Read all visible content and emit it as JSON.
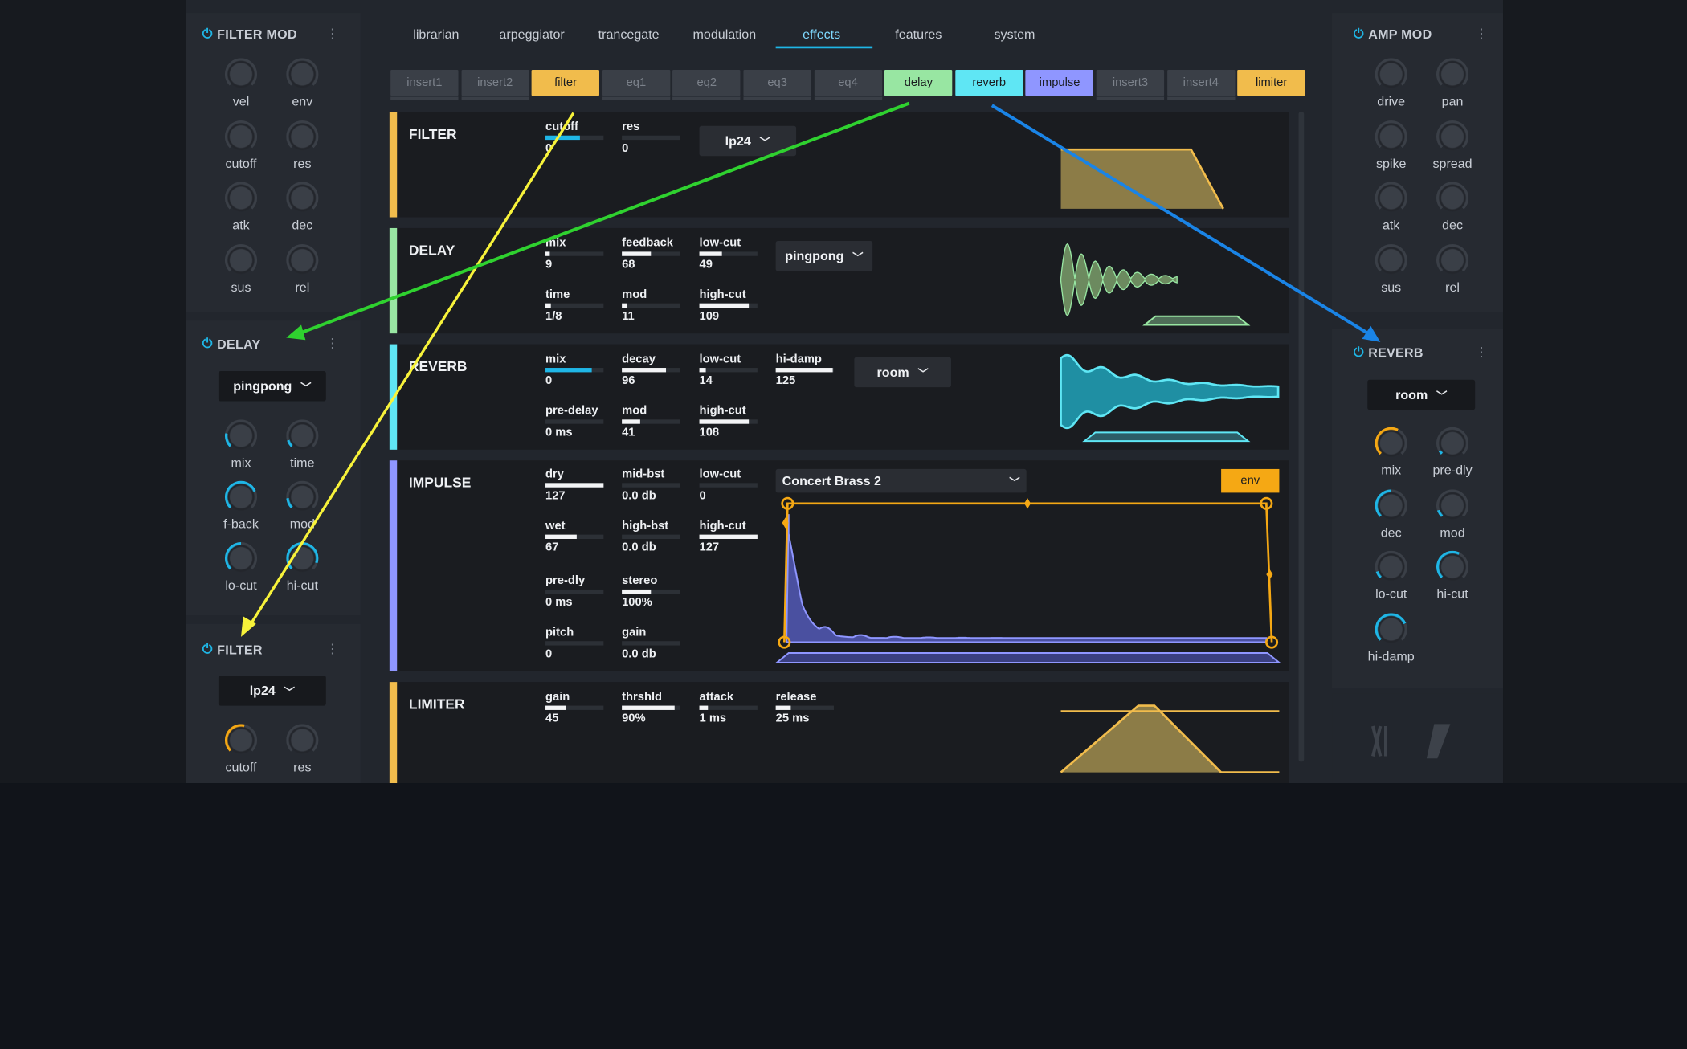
{
  "tabs": [
    "librarian",
    "arpeggiator",
    "trancegate",
    "modulation",
    "effects",
    "features",
    "system"
  ],
  "slots": [
    {
      "label": "insert1",
      "color": "#3a3f47",
      "text": "#7c828b"
    },
    {
      "label": "insert2",
      "color": "#3a3f47",
      "text": "#7c828b"
    },
    {
      "label": "filter",
      "color": "#f1bc4c",
      "text": "#1a1c20"
    },
    {
      "label": "eq1",
      "color": "#3a3f47",
      "text": "#7c828b"
    },
    {
      "label": "eq2",
      "color": "#3a3f47",
      "text": "#7c828b"
    },
    {
      "label": "eq3",
      "color": "#3a3f47",
      "text": "#7c828b"
    },
    {
      "label": "eq4",
      "color": "#3a3f47",
      "text": "#7c828b"
    },
    {
      "label": "delay",
      "color": "#98e6a2",
      "text": "#1a1c20"
    },
    {
      "label": "reverb",
      "color": "#5fe6f4",
      "text": "#1a1c20"
    },
    {
      "label": "impulse",
      "color": "#8f96ff",
      "text": "#1a1c20"
    },
    {
      "label": "insert3",
      "color": "#3a3f47",
      "text": "#7c828b"
    },
    {
      "label": "insert4",
      "color": "#3a3f47",
      "text": "#7c828b"
    },
    {
      "label": "limiter",
      "color": "#f1bc4c",
      "text": "#1a1c20"
    }
  ],
  "left": {
    "filter_mod": {
      "title": "FILTER MOD",
      "knobs": [
        "vel",
        "env",
        "cutoff",
        "res",
        "atk",
        "dec",
        "sus",
        "rel"
      ]
    },
    "delay": {
      "title": "DELAY",
      "mode": "pingpong",
      "knobs": [
        "mix",
        "time",
        "f-back",
        "mod",
        "lo-cut",
        "hi-cut"
      ]
    },
    "filter": {
      "title": "FILTER",
      "mode": "lp24",
      "knobs": [
        "cutoff",
        "res"
      ]
    }
  },
  "right": {
    "amp_mod": {
      "title": "AMP MOD",
      "knobs": [
        "drive",
        "pan",
        "spike",
        "spread",
        "atk",
        "dec",
        "sus",
        "rel"
      ]
    },
    "reverb": {
      "title": "REVERB",
      "mode": "room",
      "knobs": [
        "mix",
        "pre-dly",
        "dec",
        "mod",
        "lo-cut",
        "hi-cut",
        "hi-damp"
      ]
    }
  },
  "sections": {
    "filter": {
      "title": "FILTER",
      "mode": "lp24",
      "color": "#f1bc4c",
      "params": [
        {
          "name": "cutoff",
          "value": "0",
          "fill": 0.6
        },
        {
          "name": "res",
          "value": "0",
          "fill": 0
        }
      ]
    },
    "delay": {
      "title": "DELAY",
      "mode": "pingpong",
      "color": "#98e6a2",
      "params": [
        {
          "name": "mix",
          "value": "9",
          "fill": 0.07
        },
        {
          "name": "feedback",
          "value": "68",
          "fill": 0.5
        },
        {
          "name": "low-cut",
          "value": "49",
          "fill": 0.38
        },
        {
          "name": "time",
          "value": "1/8",
          "fill": 0.1
        },
        {
          "name": "mod",
          "value": "11",
          "fill": 0.09
        },
        {
          "name": "high-cut",
          "value": "109",
          "fill": 0.85
        }
      ]
    },
    "reverb": {
      "title": "REVERB",
      "mode": "room",
      "color": "#5fe6f4",
      "params": [
        {
          "name": "mix",
          "value": "0",
          "fill": 0.8
        },
        {
          "name": "decay",
          "value": "96",
          "fill": 0.75
        },
        {
          "name": "low-cut",
          "value": "14",
          "fill": 0.11
        },
        {
          "name": "hi-damp",
          "value": "125",
          "fill": 0.98
        },
        {
          "name": "pre-delay",
          "value": "0 ms",
          "fill": 0
        },
        {
          "name": "mod",
          "value": "41",
          "fill": 0.32
        },
        {
          "name": "high-cut",
          "value": "108",
          "fill": 0.85
        }
      ]
    },
    "impulse": {
      "title": "IMPULSE",
      "preset": "Concert Brass 2",
      "env_label": "env",
      "color": "#8f96ff",
      "params": [
        {
          "name": "dry",
          "value": "127",
          "fill": 1
        },
        {
          "name": "mid-bst",
          "value": "0.0 db",
          "fill": 0
        },
        {
          "name": "low-cut",
          "value": "0",
          "fill": 0
        },
        {
          "name": "wet",
          "value": "67",
          "fill": 0.53
        },
        {
          "name": "high-bst",
          "value": "0.0 db",
          "fill": 0
        },
        {
          "name": "high-cut",
          "value": "127",
          "fill": 1
        },
        {
          "name": "pre-dly",
          "value": "0 ms",
          "fill": 0
        },
        {
          "name": "stereo",
          "value": "100%",
          "fill": 0.5
        },
        {
          "name": "pitch",
          "value": "0",
          "fill": 0
        },
        {
          "name": "gain",
          "value": "0.0 db",
          "fill": 0
        }
      ]
    },
    "limiter": {
      "title": "LIMITER",
      "color": "#f1bc4c",
      "params": [
        {
          "name": "gain",
          "value": "45",
          "fill": 0.35
        },
        {
          "name": "thrshld",
          "value": "90%",
          "fill": 0.9
        },
        {
          "name": "attack",
          "value": "1 ms",
          "fill": 0.15
        },
        {
          "name": "release",
          "value": "25 ms",
          "fill": 0.25
        }
      ]
    }
  },
  "colors": {
    "accent": "#1fb6e6",
    "orange": "#f5a814",
    "filter": "#f1bc4c",
    "delay": "#98e6a2",
    "reverb": "#5fe6f4",
    "impulse": "#8f96ff"
  }
}
